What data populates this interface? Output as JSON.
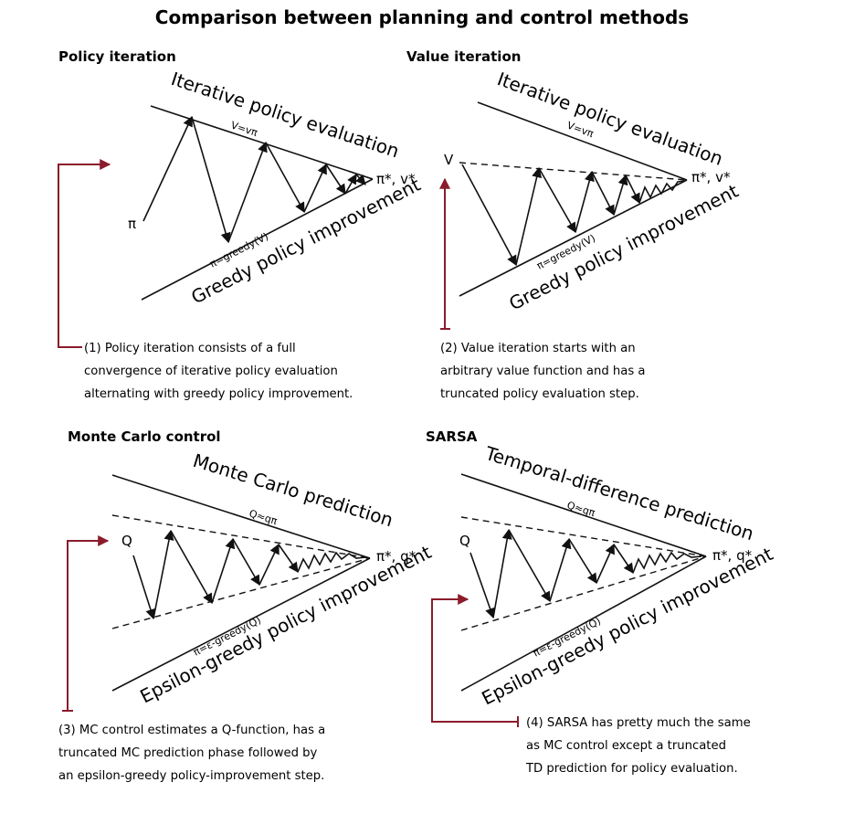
{
  "title": "Comparison between planning and control methods",
  "panels": [
    {
      "title": "Policy iteration",
      "top_label": "Iterative policy evaluation",
      "top_sub": "V=vπ",
      "bottom_label": "Greedy policy improvement",
      "bottom_sub": "π=greedy(V)",
      "start": "π",
      "end": "π*, v*",
      "caption": [
        "(1) Policy iteration consists of a full",
        "convergence of iterative policy evaluation",
        "alternating with greedy policy improvement."
      ]
    },
    {
      "title": "Value iteration",
      "top_label": "Iterative policy evaluation",
      "top_sub": "V=vπ",
      "bottom_label": "Greedy policy improvement",
      "bottom_sub": "π=greedy(V)",
      "start": "V",
      "end": "π*, v*",
      "caption": [
        "(2) Value iteration starts with an",
        "arbitrary value function and has a",
        "truncated policy evaluation step."
      ]
    },
    {
      "title": "Monte Carlo control",
      "top_label": "Monte Carlo prediction",
      "top_sub": "Q≈qπ",
      "bottom_label": "Epsilon-greedy policy improvement",
      "bottom_sub": "π=ε-greedy(Q)",
      "start": "Q",
      "end": "π*, q*",
      "caption": [
        "(3) MC control estimates a Q-function, has a",
        "truncated MC prediction phase followed by",
        "an epsilon-greedy policy-improvement step."
      ]
    },
    {
      "title": "SARSA",
      "top_label": "Temporal-difference prediction",
      "top_sub": "Q≈qπ",
      "bottom_label": "Epsilon-greedy policy improvement",
      "bottom_sub": "π=ε-greedy(Q)",
      "start": "Q",
      "end": "π*, q*",
      "caption": [
        "(4) SARSA has pretty much the same",
        "as MC control except a truncated",
        "TD prediction for policy evaluation."
      ]
    }
  ],
  "colors": {
    "ink": "#111111",
    "accent": "#8b1c2c",
    "background": "#ffffff"
  }
}
